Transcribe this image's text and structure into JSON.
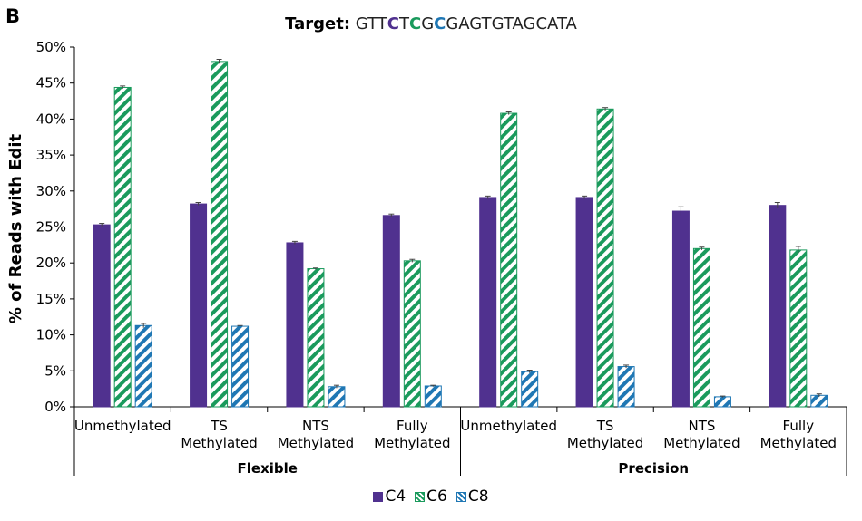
{
  "panel_label": "B",
  "title": {
    "label": "Target:",
    "sequence": [
      {
        "text": "GTT",
        "color": "#222222",
        "bold": false
      },
      {
        "text": "C",
        "color": "#50318f",
        "bold": true
      },
      {
        "text": "T",
        "color": "#222222",
        "bold": false
      },
      {
        "text": "C",
        "color": "#1a9a5c",
        "bold": true
      },
      {
        "text": "G",
        "color": "#222222",
        "bold": false
      },
      {
        "text": "C",
        "color": "#1f77b4",
        "bold": true
      },
      {
        "text": "GAGTGTAGCATA",
        "color": "#222222",
        "bold": false
      }
    ]
  },
  "chart_data": {
    "type": "bar",
    "ylabel": "% of Reads with Edit",
    "ylim": [
      0,
      50
    ],
    "yticks": [
      "0%",
      "5%",
      "10%",
      "15%",
      "20%",
      "25%",
      "30%",
      "35%",
      "40%",
      "45%",
      "50%"
    ],
    "groups": [
      {
        "name": "Flexible",
        "categories": [
          [
            "Unmethylated"
          ],
          [
            "TS",
            "Methylated"
          ],
          [
            "NTS",
            "Methylated"
          ],
          [
            "Fully",
            "Methylated"
          ]
        ]
      },
      {
        "name": "Precision",
        "categories": [
          [
            "Unmethylated"
          ],
          [
            "TS",
            "Methylated"
          ],
          [
            "NTS",
            "Methylated"
          ],
          [
            "Fully",
            "Methylated"
          ]
        ]
      }
    ],
    "series": [
      {
        "name": "C4",
        "color": "#50318f",
        "pattern": "solid",
        "values": [
          25.3,
          28.2,
          22.8,
          26.6,
          29.1,
          29.1,
          27.2,
          28.0
        ],
        "errors": [
          0.2,
          0.2,
          0.2,
          0.2,
          0.2,
          0.2,
          0.6,
          0.4
        ]
      },
      {
        "name": "C6",
        "color": "#1a9a5c",
        "pattern": "diagonal-stripes",
        "values": [
          44.4,
          48.0,
          19.2,
          20.3,
          40.8,
          41.4,
          22.0,
          21.8
        ],
        "errors": [
          0.2,
          0.3,
          0.1,
          0.2,
          0.2,
          0.2,
          0.2,
          0.5
        ]
      },
      {
        "name": "C8",
        "color": "#1f77b4",
        "pattern": "diagonal-stripes",
        "values": [
          11.3,
          11.2,
          2.8,
          2.9,
          4.9,
          5.6,
          1.4,
          1.6
        ],
        "errors": [
          0.3,
          0.1,
          0.2,
          0.1,
          0.2,
          0.2,
          0.1,
          0.2
        ]
      }
    ],
    "grid": false,
    "legend_position": "bottom-center"
  }
}
